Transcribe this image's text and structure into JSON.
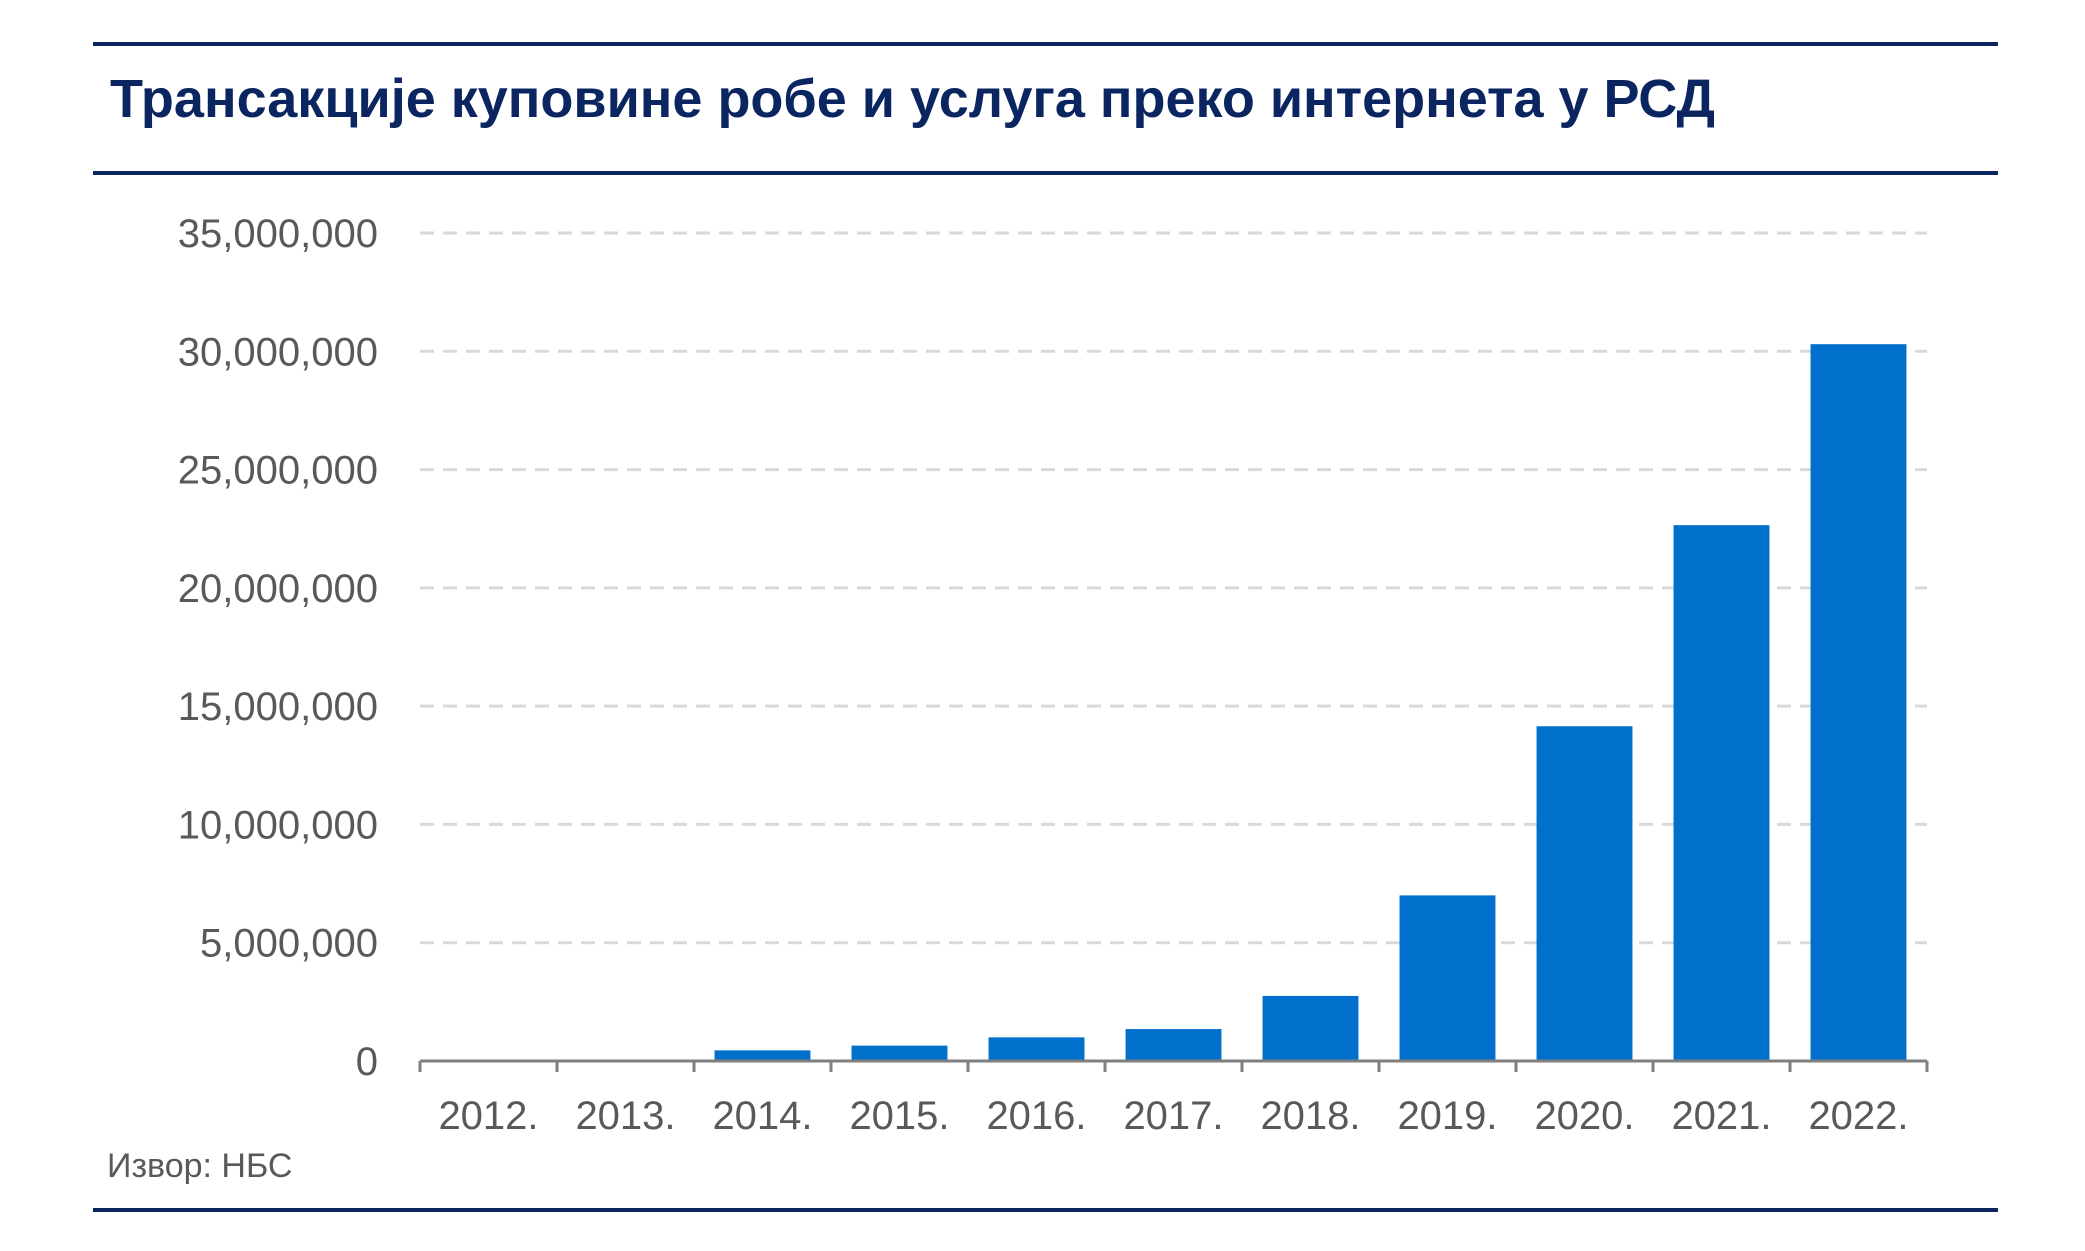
{
  "chart_data": {
    "type": "bar",
    "title": "Трансакције куповине робе и услуга преко интернета у РСД",
    "xlabel": "",
    "ylabel": "",
    "categories": [
      "2012.",
      "2013.",
      "2014.",
      "2015.",
      "2016.",
      "2017.",
      "2018.",
      "2019.",
      "2020.",
      "2021.",
      "2022."
    ],
    "series": [
      {
        "values": [
          0,
          0,
          450000,
          650000,
          1000000,
          1350000,
          2750000,
          7000000,
          14150000,
          22650000,
          30300000
        ],
        "color": "#0070cc"
      }
    ],
    "ylim": [
      0,
      35000000
    ],
    "yticks": [
      0,
      5000000,
      10000000,
      15000000,
      20000000,
      25000000,
      30000000,
      35000000
    ],
    "ytick_labels": [
      "0",
      "5,000,000",
      "10,000,000",
      "15,000,000",
      "20,000,000",
      "25,000,000",
      "30,000,000",
      "35,000,000"
    ],
    "grid": true,
    "legend": "none"
  },
  "footer": {
    "source": "Извор: НБС"
  },
  "colors": {
    "title": "#0b2560",
    "rules": "#0b2560",
    "bars": "#0070cc",
    "text": "#595959",
    "grid": "#d9d9d9",
    "axis": "#7f7f7f"
  }
}
